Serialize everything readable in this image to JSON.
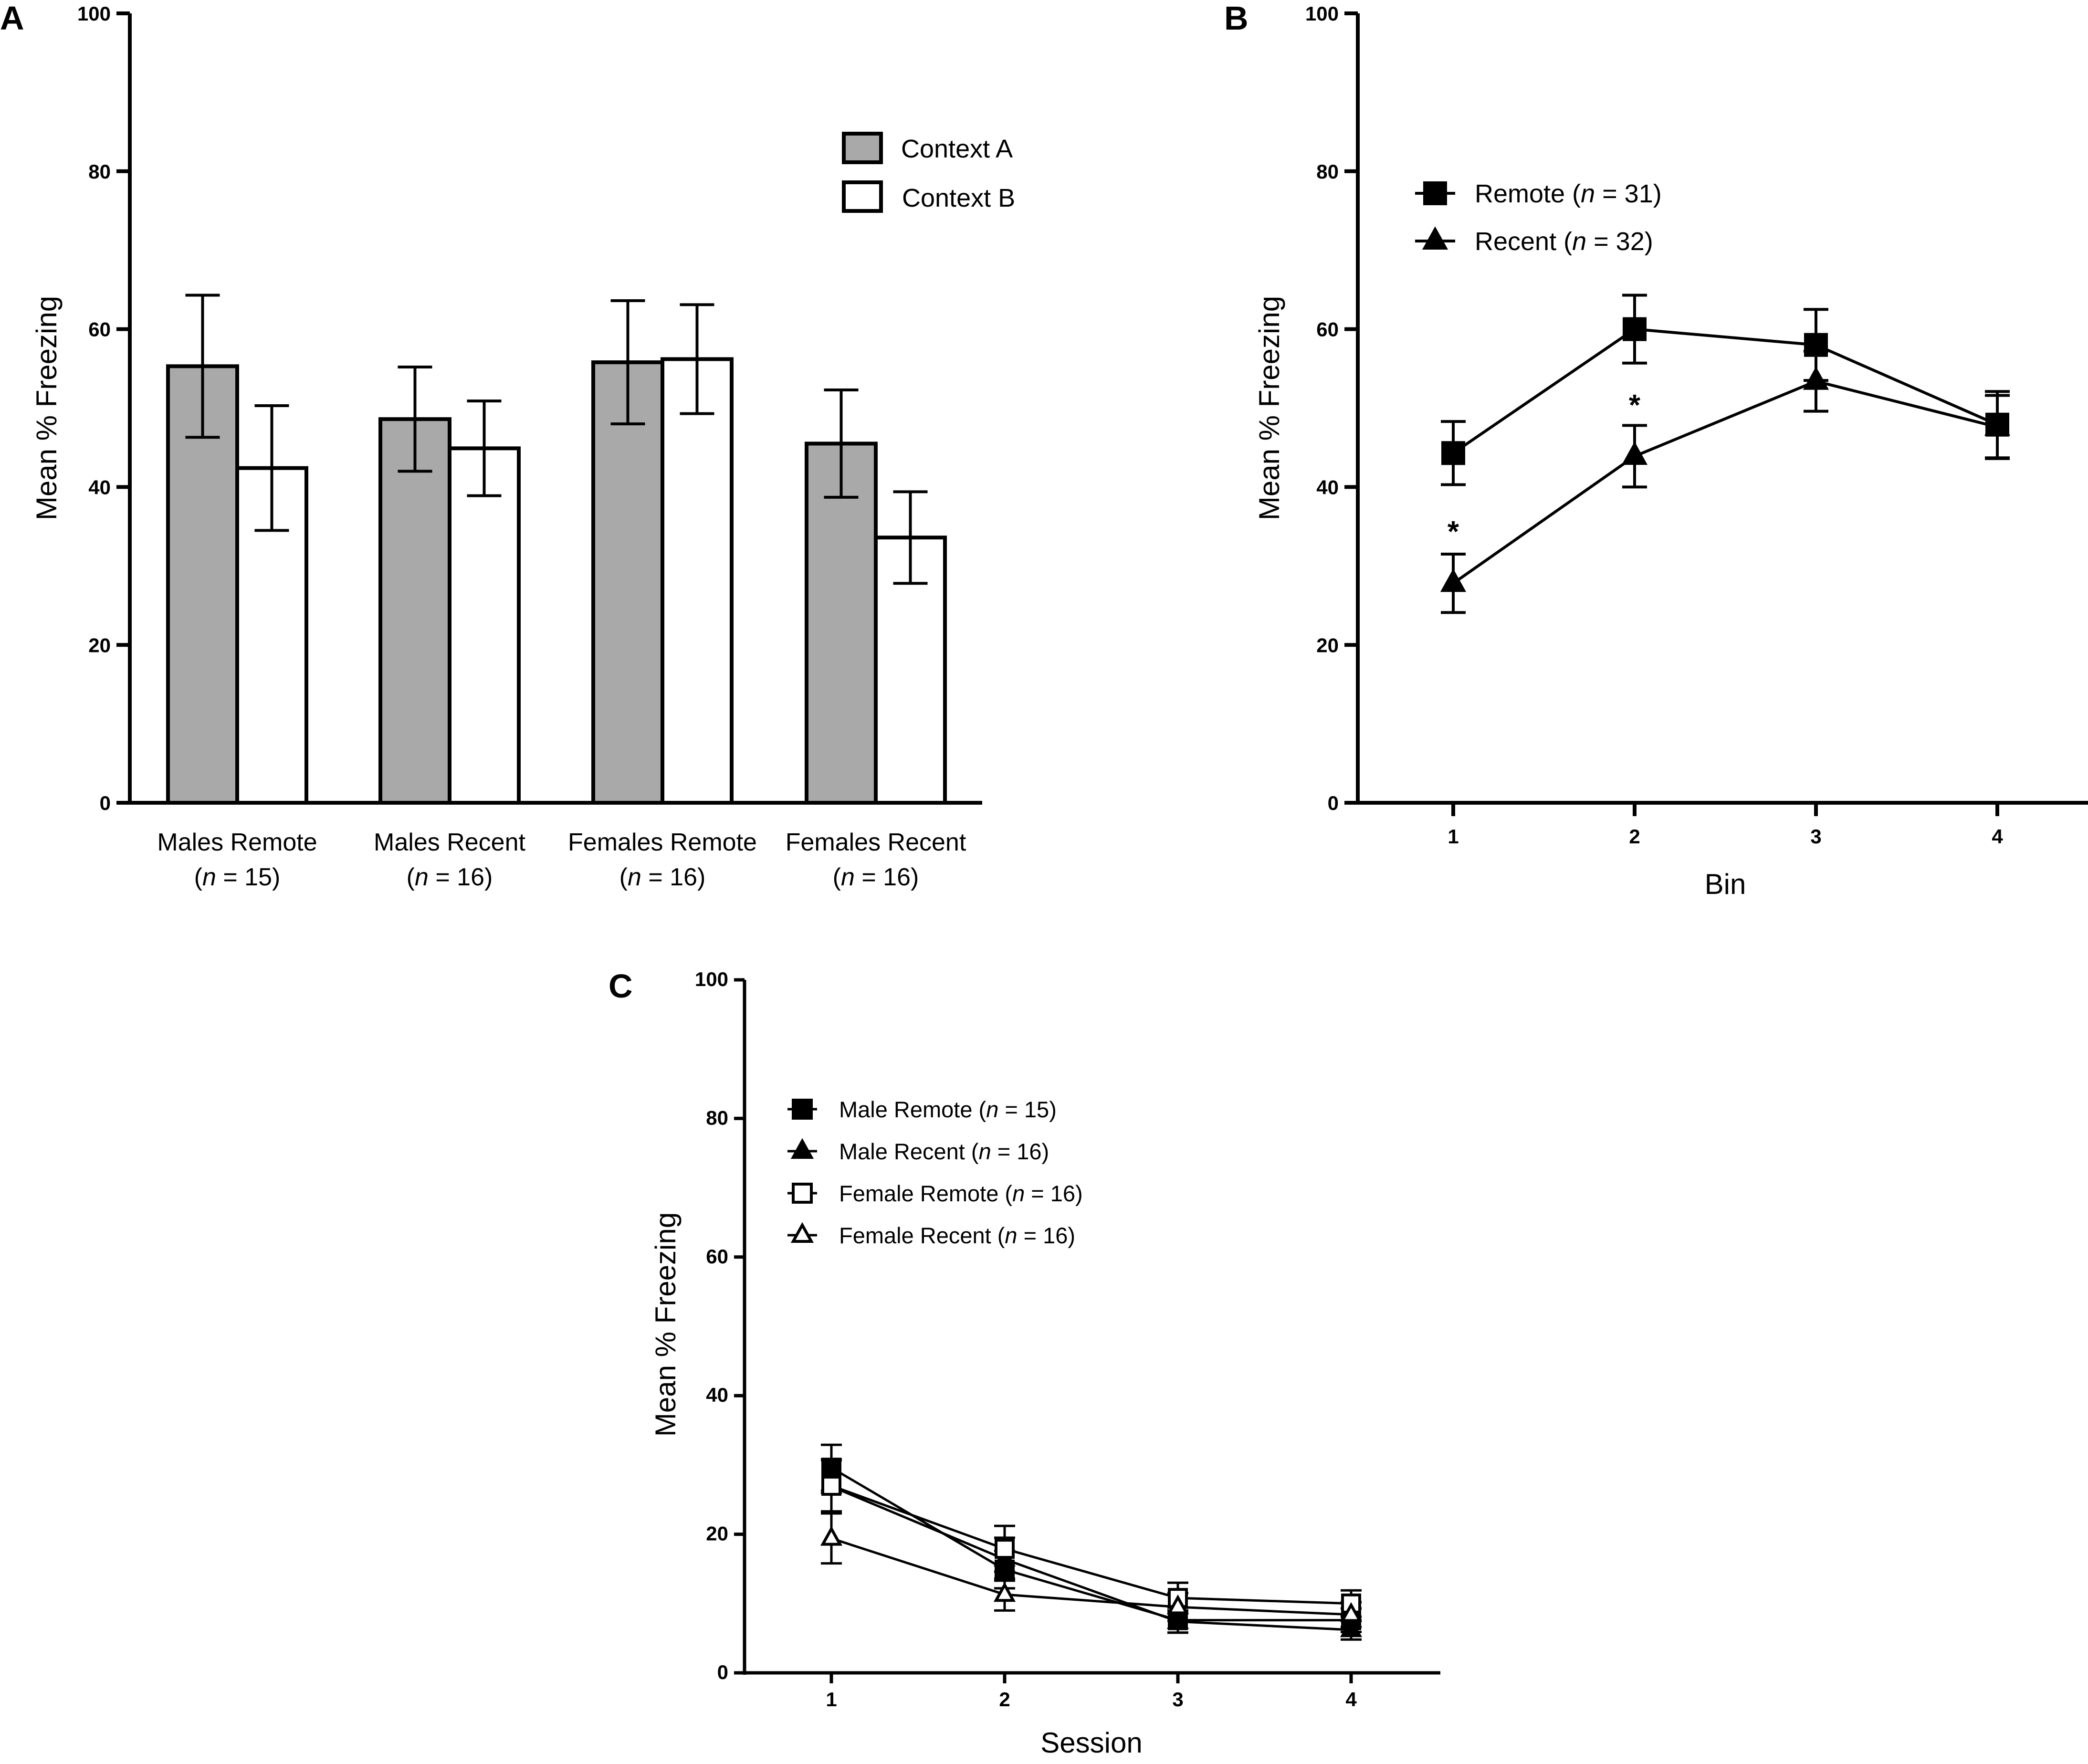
{
  "figure": {
    "background": "#ffffff",
    "ink": "#000000",
    "bar_fill_a": "#a9a9a9",
    "bar_fill_b": "#ffffff"
  },
  "chart_data": [
    {
      "panel": "A",
      "type": "bar",
      "ylabel": "Mean % Freezing",
      "xlabel": "",
      "ylim": [
        0,
        100
      ],
      "yticks": [
        "0",
        "20",
        "40",
        "60",
        "80",
        "100"
      ],
      "categories": [
        {
          "line1": "Males Remote",
          "n_label": "n",
          "n_rest": " = 15)"
        },
        {
          "line1": "Males Recent",
          "n_label": "n",
          "n_rest": " = 16)"
        },
        {
          "line1": "Females Remote",
          "n_label": "n",
          "n_rest": " = 16)"
        },
        {
          "line1": "Females Recent",
          "n_label": "n",
          "n_rest": " = 16)"
        }
      ],
      "series": [
        {
          "name": "Context A",
          "fill": "#a9a9a9",
          "values": [
            55.3,
            48.6,
            55.8,
            45.5
          ],
          "errors": [
            9.0,
            6.6,
            7.8,
            6.8
          ]
        },
        {
          "name": "Context B",
          "fill": "#ffffff",
          "values": [
            42.4,
            44.9,
            56.2,
            33.6
          ],
          "errors": [
            7.9,
            6.0,
            6.9,
            5.8
          ]
        }
      ],
      "legend": {
        "position": "top-right",
        "items": [
          "Context A",
          "Context B"
        ]
      }
    },
    {
      "panel": "B",
      "type": "line",
      "ylabel": "Mean % Freezing",
      "xlabel": "Bin",
      "ylim": [
        0,
        100
      ],
      "yticks": [
        "0",
        "20",
        "40",
        "60",
        "80",
        "100"
      ],
      "x": [
        1,
        2,
        3,
        4
      ],
      "xticks": [
        "1",
        "2",
        "3",
        "4"
      ],
      "series": [
        {
          "name": "Remote",
          "n_label": "n",
          "n_rest": " = 31)",
          "marker": "square-filled",
          "values": [
            44.3,
            60.0,
            58.0,
            47.9
          ],
          "errors": [
            4.0,
            4.3,
            4.5,
            4.2
          ]
        },
        {
          "name": "Recent",
          "n_label": "n",
          "n_rest": " = 32)",
          "marker": "triangle-filled",
          "values": [
            27.8,
            43.9,
            53.4,
            47.6
          ],
          "errors": [
            3.7,
            3.9,
            3.8,
            4.0
          ]
        }
      ],
      "annotations": [
        {
          "x": 1,
          "y": 35.5,
          "text": "*"
        },
        {
          "x": 2,
          "y": 51.5,
          "text": "*"
        }
      ],
      "legend": {
        "position": "top-left"
      }
    },
    {
      "panel": "C",
      "type": "line",
      "ylabel": "Mean % Freezing",
      "xlabel": "Session",
      "ylim": [
        0,
        100
      ],
      "yticks": [
        "0",
        "20",
        "40",
        "60",
        "80",
        "100"
      ],
      "x": [
        1,
        2,
        3,
        4
      ],
      "xticks": [
        "1",
        "2",
        "3",
        "4"
      ],
      "series": [
        {
          "name": "Male Remote",
          "n_label": "n",
          "n_rest": " = 15)",
          "marker": "square-filled",
          "values": [
            29.6,
            14.9,
            7.6,
            7.6
          ],
          "errors": [
            3.3,
            2.7,
            1.8,
            1.7
          ]
        },
        {
          "name": "Male Recent",
          "n_label": "n",
          "n_rest": " = 16)",
          "marker": "triangle-filled",
          "values": [
            26.9,
            16.4,
            7.4,
            6.2
          ],
          "errors": [
            3.9,
            3.1,
            1.6,
            1.4
          ]
        },
        {
          "name": "Female Remote",
          "n_label": "n",
          "n_rest": " = 16)",
          "marker": "square-open",
          "values": [
            27.0,
            17.9,
            10.8,
            10.0
          ],
          "errors": [
            3.7,
            3.3,
            2.2,
            1.9
          ]
        },
        {
          "name": "Female Recent",
          "n_label": "n",
          "n_rest": " = 16)",
          "marker": "triangle-open",
          "values": [
            19.4,
            11.3,
            9.5,
            8.4
          ],
          "errors": [
            3.6,
            2.3,
            2.0,
            1.8
          ]
        }
      ],
      "legend": {
        "position": "top-left"
      }
    }
  ]
}
